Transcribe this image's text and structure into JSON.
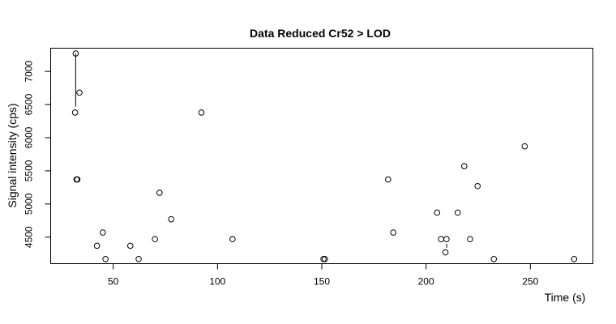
{
  "chart_data": {
    "type": "scatter",
    "title": "Data Reduced Cr52 > LOD",
    "xlabel": "Time (s)",
    "ylabel": "Signal intensity (cps)",
    "xlim": [
      20,
      280
    ],
    "ylim": [
      4100,
      7350
    ],
    "x_ticks": [
      50,
      100,
      150,
      200,
      250
    ],
    "x_tick_labels": [
      "50",
      "100",
      "150",
      "200",
      "250"
    ],
    "y_ticks": [
      4500,
      5000,
      5500,
      6000,
      6500,
      7000
    ],
    "y_tick_labels": [
      "4500",
      "5000",
      "5500",
      "6000",
      "6500",
      "7000"
    ],
    "grid": false,
    "points": [
      {
        "x": 32.0,
        "y": 7270
      },
      {
        "x": 33.8,
        "y": 6680
      },
      {
        "x": 31.7,
        "y": 6380
      },
      {
        "x": 32.4,
        "y": 5370
      },
      {
        "x": 32.8,
        "y": 5370
      },
      {
        "x": 42.2,
        "y": 4370
      },
      {
        "x": 45.0,
        "y": 4570
      },
      {
        "x": 46.3,
        "y": 4170
      },
      {
        "x": 58.2,
        "y": 4370
      },
      {
        "x": 62.2,
        "y": 4170
      },
      {
        "x": 70.0,
        "y": 4470
      },
      {
        "x": 72.2,
        "y": 5170
      },
      {
        "x": 77.8,
        "y": 4770
      },
      {
        "x": 92.3,
        "y": 6380
      },
      {
        "x": 107.2,
        "y": 4470
      },
      {
        "x": 150.8,
        "y": 4170
      },
      {
        "x": 151.5,
        "y": 4170
      },
      {
        "x": 181.8,
        "y": 5370
      },
      {
        "x": 184.3,
        "y": 4570
      },
      {
        "x": 205.3,
        "y": 4870
      },
      {
        "x": 207.2,
        "y": 4470
      },
      {
        "x": 209.3,
        "y": 4270
      },
      {
        "x": 209.8,
        "y": 4470
      },
      {
        "x": 215.2,
        "y": 4870
      },
      {
        "x": 218.3,
        "y": 5570
      },
      {
        "x": 221.1,
        "y": 4470
      },
      {
        "x": 224.7,
        "y": 5270
      },
      {
        "x": 232.5,
        "y": 4170
      },
      {
        "x": 247.3,
        "y": 5870
      },
      {
        "x": 271.0,
        "y": 4170
      }
    ],
    "segments": [
      {
        "x1": 32.0,
        "y1": 7270,
        "x2": 32.0,
        "y2": 6470
      },
      {
        "x1": 209.9,
        "y1": 4400,
        "x2": 209.9,
        "y2": 4340
      }
    ]
  }
}
